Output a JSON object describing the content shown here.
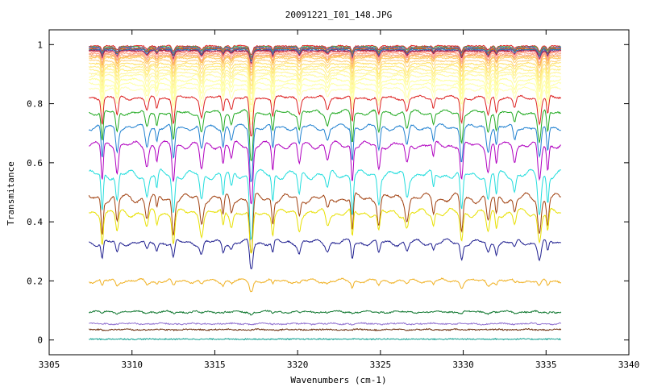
{
  "chart_data": {
    "type": "line",
    "title": "20091221_I01_148.JPG",
    "xlabel": "Wavenumbers (cm-1)",
    "ylabel": "Transmitance",
    "xlim": [
      3305,
      3340
    ],
    "ylim": [
      -0.05,
      1.05
    ],
    "x_ticks": [
      "3305",
      "3310",
      "3315",
      "3320",
      "3325",
      "3330",
      "3335",
      "3340"
    ],
    "y_ticks": [
      "0",
      "0.2",
      "0.4",
      "0.6",
      "0.8",
      "1"
    ],
    "x_range_of_data": [
      3307.4,
      3335.9
    ],
    "absorption_lines_cm1": [
      3308.2,
      3309.1,
      3310.9,
      3311.5,
      3312.5,
      3314.2,
      3315.5,
      3316.0,
      3317.2,
      3318.5,
      3320.1,
      3321.8,
      3323.3,
      3324.9,
      3326.6,
      3328.2,
      3329.9,
      3331.5,
      3332.0,
      3333.1,
      3334.6,
      3335.1
    ],
    "grid": false,
    "legend": "none",
    "series": [
      {
        "color": "#e41a1c",
        "baseline": 0.995
      },
      {
        "color": "#4daf4a",
        "baseline": 0.992
      },
      {
        "color": "#377eb8",
        "baseline": 0.99
      },
      {
        "color": "#984ea3",
        "baseline": 0.988
      },
      {
        "color": "#ff7f00",
        "baseline": 0.986
      },
      {
        "color": "#a65628",
        "baseline": 0.985
      },
      {
        "color": "#1f78b4",
        "baseline": 0.983
      },
      {
        "color": "#6a3d9a",
        "baseline": 0.98
      },
      {
        "color": "#b2182b",
        "baseline": 0.978
      },
      {
        "color": "#ff9999",
        "baseline": 0.975
      },
      {
        "color": "#ffa07a",
        "baseline": 0.97
      },
      {
        "color": "#f4a582",
        "baseline": 0.965
      },
      {
        "color": "#ffb347",
        "baseline": 0.96
      },
      {
        "color": "#ffcc66",
        "baseline": 0.955
      },
      {
        "color": "#ffd27f",
        "baseline": 0.945
      },
      {
        "color": "#ffe066",
        "baseline": 0.935
      },
      {
        "color": "#ffec80",
        "baseline": 0.925
      },
      {
        "color": "#fff08a",
        "baseline": 0.915
      },
      {
        "color": "#fff59d",
        "baseline": 0.905
      },
      {
        "color": "#fffaa0",
        "baseline": 0.895
      },
      {
        "color": "#ffff99",
        "baseline": 0.88
      },
      {
        "color": "#ffffa8",
        "baseline": 0.865
      },
      {
        "color": "#ffffb3",
        "baseline": 0.85
      },
      {
        "color": "#dd2222",
        "baseline": 0.82
      },
      {
        "color": "#22aa22",
        "baseline": 0.77
      },
      {
        "color": "#1f80d0",
        "baseline": 0.72
      },
      {
        "color": "#b000c0",
        "baseline": 0.66
      },
      {
        "color": "#22dddd",
        "baseline": 0.56
      },
      {
        "color": "#a0400f",
        "baseline": 0.48
      },
      {
        "color": "#e8e000",
        "baseline": 0.43
      },
      {
        "color": "#202090",
        "baseline": 0.33
      },
      {
        "color": "#f0b020",
        "baseline": 0.2
      },
      {
        "color": "#107830",
        "baseline": 0.095
      },
      {
        "color": "#9070d0",
        "baseline": 0.055
      },
      {
        "color": "#6a2c0c",
        "baseline": 0.035
      },
      {
        "color": "#10a090",
        "baseline": 0.003
      }
    ]
  }
}
